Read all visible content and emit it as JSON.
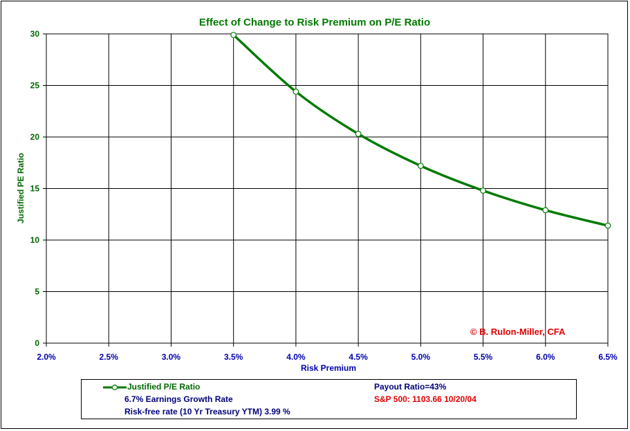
{
  "chart_data": {
    "type": "line",
    "title": "Effect of Change to Risk Premium on P/E Ratio",
    "xlabel": "Risk Premium",
    "ylabel": "Justified PE Ratio",
    "xlim": [
      2.0,
      6.5
    ],
    "ylim": [
      0,
      30
    ],
    "x_ticks": [
      "2.0%",
      "2.5%",
      "3.0%",
      "3.5%",
      "4.0%",
      "4.5%",
      "5.0%",
      "5.5%",
      "6.0%",
      "6.5%"
    ],
    "y_ticks": [
      "0",
      "5",
      "10",
      "15",
      "20",
      "25",
      "30"
    ],
    "grid": true,
    "series": [
      {
        "name": "Justified P/E Ratio",
        "color": "#007a00",
        "x": [
          3.5,
          4.0,
          4.5,
          5.0,
          5.5,
          6.0,
          6.5
        ],
        "values": [
          29.9,
          24.4,
          20.3,
          17.2,
          14.8,
          12.9,
          11.4
        ]
      }
    ],
    "legend_position": "bottom"
  },
  "annotation": "© B. Rulon-Miller, CFA",
  "legend": {
    "series_label": "Justified P/E Ratio",
    "growth_rate": "6.7% Earnings Growth Rate",
    "risk_free": "Risk-free rate (10 Yr Treasury YTM) 3.99  %",
    "payout": "Payout Ratio=43%",
    "sp500": "S&P 500: 1103.66 10/20/04"
  }
}
